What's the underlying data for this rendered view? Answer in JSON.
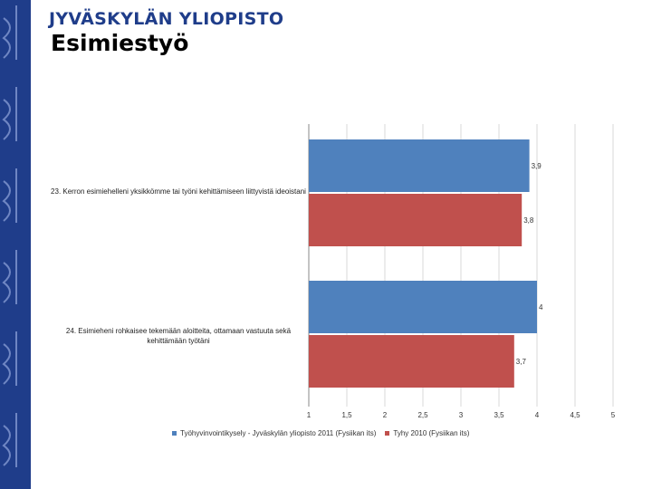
{
  "header": {
    "university": "JYVÄSKYLÄN YLIOPISTO",
    "title": "Esimiestyö"
  },
  "colors": {
    "sidebar": "#1f3d8a",
    "series1": "#4f81bd",
    "series2": "#c0504d"
  },
  "chart_data": {
    "type": "bar",
    "orientation": "horizontal",
    "categories": [
      "23. Kerron esimiehelleni yksikkömme tai työni kehittämiseen liittyvistä ideoistani",
      "24. Esimieheni rohkaisee tekemään aloitteita, ottamaan vastuuta sekä kehittämään työtäni"
    ],
    "series": [
      {
        "name": "Työhyvinvointikysely - Jyväskylän yliopisto 2011 (Fysiikan its)",
        "values": [
          3.9,
          4
        ],
        "labels": [
          "3,9",
          "4"
        ]
      },
      {
        "name": "Tyhy 2010 (Fysiikan its)",
        "values": [
          3.8,
          3.7
        ],
        "labels": [
          "3,8",
          "3,7"
        ]
      }
    ],
    "xlim": [
      1,
      5
    ],
    "ticks": [
      1,
      1.5,
      2,
      2.5,
      3,
      3.5,
      4,
      4.5,
      5
    ],
    "tick_labels": [
      "1",
      "1,5",
      "2",
      "2,5",
      "3",
      "3,5",
      "4",
      "4,5",
      "5"
    ],
    "grid": true,
    "legend": "bottom"
  }
}
